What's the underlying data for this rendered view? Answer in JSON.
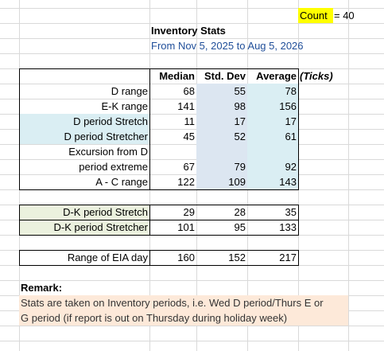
{
  "count": {
    "label": "Count",
    "value": "= 40"
  },
  "title": "Inventory Stats",
  "subtitle": "From Nov 5, 2025 to Aug 5, 2026",
  "table": {
    "headers": [
      "Median",
      "Std. Dev",
      "Average",
      "(Ticks)"
    ],
    "rows": [
      [
        "D range",
        68,
        55,
        78
      ],
      [
        "E-K range",
        141,
        98,
        156
      ],
      [
        "D period Stretch",
        11,
        17,
        17
      ],
      [
        "D period Stretcher",
        45,
        52,
        61
      ],
      [
        "Excursion from D"
      ],
      [
        "period extreme",
        67,
        79,
        92
      ],
      [
        "A - C range",
        122,
        109,
        143
      ]
    ]
  },
  "table2": {
    "rows": [
      [
        "D-K period Stretch",
        29,
        28,
        35
      ],
      [
        "D-K period Stretcher",
        101,
        95,
        133
      ]
    ]
  },
  "table3": {
    "rows": [
      [
        "Range of EIA day",
        160,
        152,
        217
      ]
    ]
  },
  "remark": {
    "title": "Remark:",
    "lines": [
      "Stats are taken on Inventory periods, i.e. Wed D period/Thurs E or",
      "G period (if report is out on Thursday during holiday week)"
    ]
  }
}
